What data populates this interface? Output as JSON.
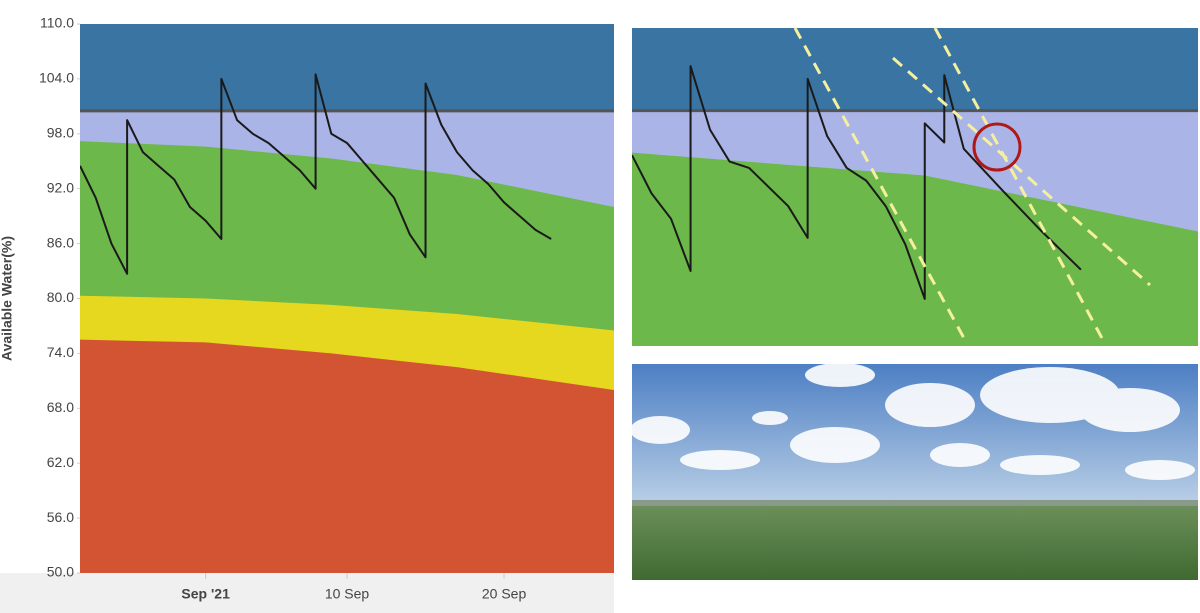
{
  "chart_data": [
    {
      "type": "line",
      "y_label": "Available Water(%)",
      "ylim": [
        50,
        110
      ],
      "yticks": [
        {
          "value": 50,
          "label": "50.0"
        },
        {
          "value": 56,
          "label": "56.0"
        },
        {
          "value": 62,
          "label": "62.0"
        },
        {
          "value": 68,
          "label": "68.0"
        },
        {
          "value": 74,
          "label": "74.0"
        },
        {
          "value": 80,
          "label": "80.0"
        },
        {
          "value": 86,
          "label": "86.0"
        },
        {
          "value": 92,
          "label": "92.0"
        },
        {
          "value": 98,
          "label": "98.0"
        },
        {
          "value": 104,
          "label": "104.0"
        },
        {
          "value": 110,
          "label": "110.0"
        }
      ],
      "xlim": [
        "2021-08-24",
        "2021-09-27"
      ],
      "xticks": [
        {
          "value": "2021-09-01",
          "label": "Sep '21"
        },
        {
          "value": "2021-09-10",
          "label": "10 Sep"
        },
        {
          "value": "2021-09-20",
          "label": "20 Sep"
        }
      ],
      "plot_background": "#3a74a3",
      "threshold": {
        "value": 100.5,
        "color": "#555555",
        "below_color": "#aab4e6"
      },
      "areas": [
        {
          "color": "#6db84a",
          "x": [
            "2021-08-24",
            "2021-09-01",
            "2021-09-09",
            "2021-09-17",
            "2021-09-27"
          ],
          "values": [
            97.2,
            96.6,
            95.3,
            93.5,
            90.0
          ]
        },
        {
          "color": "#e6d81f",
          "x": [
            "2021-08-24",
            "2021-09-01",
            "2021-09-09",
            "2021-09-17",
            "2021-09-27"
          ],
          "values": [
            80.3,
            80.0,
            79.3,
            78.3,
            76.5
          ]
        },
        {
          "color": "#d25432",
          "x": [
            "2021-08-24",
            "2021-09-01",
            "2021-09-09",
            "2021-09-17",
            "2021-09-27"
          ],
          "values": [
            75.5,
            75.2,
            74.0,
            72.5,
            70.0
          ]
        }
      ],
      "series": [
        {
          "color": "#1a1a1a",
          "x": [
            "2021-08-24",
            "2021-08-25",
            "2021-08-26",
            "2021-08-27",
            "2021-08-27",
            "2021-08-28",
            "2021-08-29",
            "2021-08-30",
            "2021-08-31",
            "2021-09-01",
            "2021-09-02",
            "2021-09-02",
            "2021-09-03",
            "2021-09-04",
            "2021-09-05",
            "2021-09-06",
            "2021-09-07",
            "2021-09-08",
            "2021-09-08",
            "2021-09-09",
            "2021-09-10",
            "2021-09-11",
            "2021-09-12",
            "2021-09-13",
            "2021-09-14",
            "2021-09-15",
            "2021-09-15",
            "2021-09-16",
            "2021-09-17",
            "2021-09-18",
            "2021-09-19",
            "2021-09-20",
            "2021-09-21",
            "2021-09-22",
            "2021-09-23"
          ],
          "values": [
            94.5,
            91.0,
            86.0,
            82.7,
            99.5,
            96.0,
            94.5,
            93.0,
            90.0,
            88.5,
            86.5,
            104.0,
            99.5,
            98.0,
            97.0,
            95.5,
            94.0,
            92.0,
            104.5,
            98.0,
            97.0,
            95.0,
            93.0,
            91.0,
            87.0,
            84.5,
            103.5,
            99.0,
            96.0,
            94.0,
            92.5,
            90.5,
            89.0,
            87.5,
            86.5
          ]
        }
      ]
    },
    {
      "type": "line",
      "ylim": [
        82,
        107
      ],
      "xlim": [
        "2021-08-23",
        "2021-09-21"
      ],
      "plot_background": "#3a74a3",
      "threshold": {
        "value": 100.5,
        "color": "#555555",
        "below_color": "#aab4e6"
      },
      "areas": [
        {
          "color": "#6db84a",
          "x": [
            "2021-08-23",
            "2021-09-07",
            "2021-09-21"
          ],
          "values": [
            97.2,
            95.4,
            91.0
          ]
        }
      ],
      "series": [
        {
          "color": "#1a1a1a",
          "x": [
            "2021-08-23",
            "2021-08-24",
            "2021-08-25",
            "2021-08-26",
            "2021-08-26",
            "2021-08-27",
            "2021-08-28",
            "2021-08-29",
            "2021-08-30",
            "2021-08-31",
            "2021-09-01",
            "2021-09-01",
            "2021-09-02",
            "2021-09-03",
            "2021-09-04",
            "2021-09-05",
            "2021-09-06",
            "2021-09-07",
            "2021-09-07",
            "2021-09-08",
            "2021-09-08",
            "2021-09-09",
            "2021-09-11",
            "2021-09-13",
            "2021-09-15"
          ],
          "values": [
            97.0,
            94.0,
            92.0,
            87.9,
            104.0,
            99.0,
            96.5,
            96.0,
            94.5,
            93.0,
            90.5,
            103.0,
            98.5,
            96.0,
            95.0,
            93.0,
            90.0,
            85.7,
            99.5,
            98.0,
            103.3,
            97.5,
            94.2,
            91.0,
            88.0
          ]
        }
      ]
    }
  ]
}
